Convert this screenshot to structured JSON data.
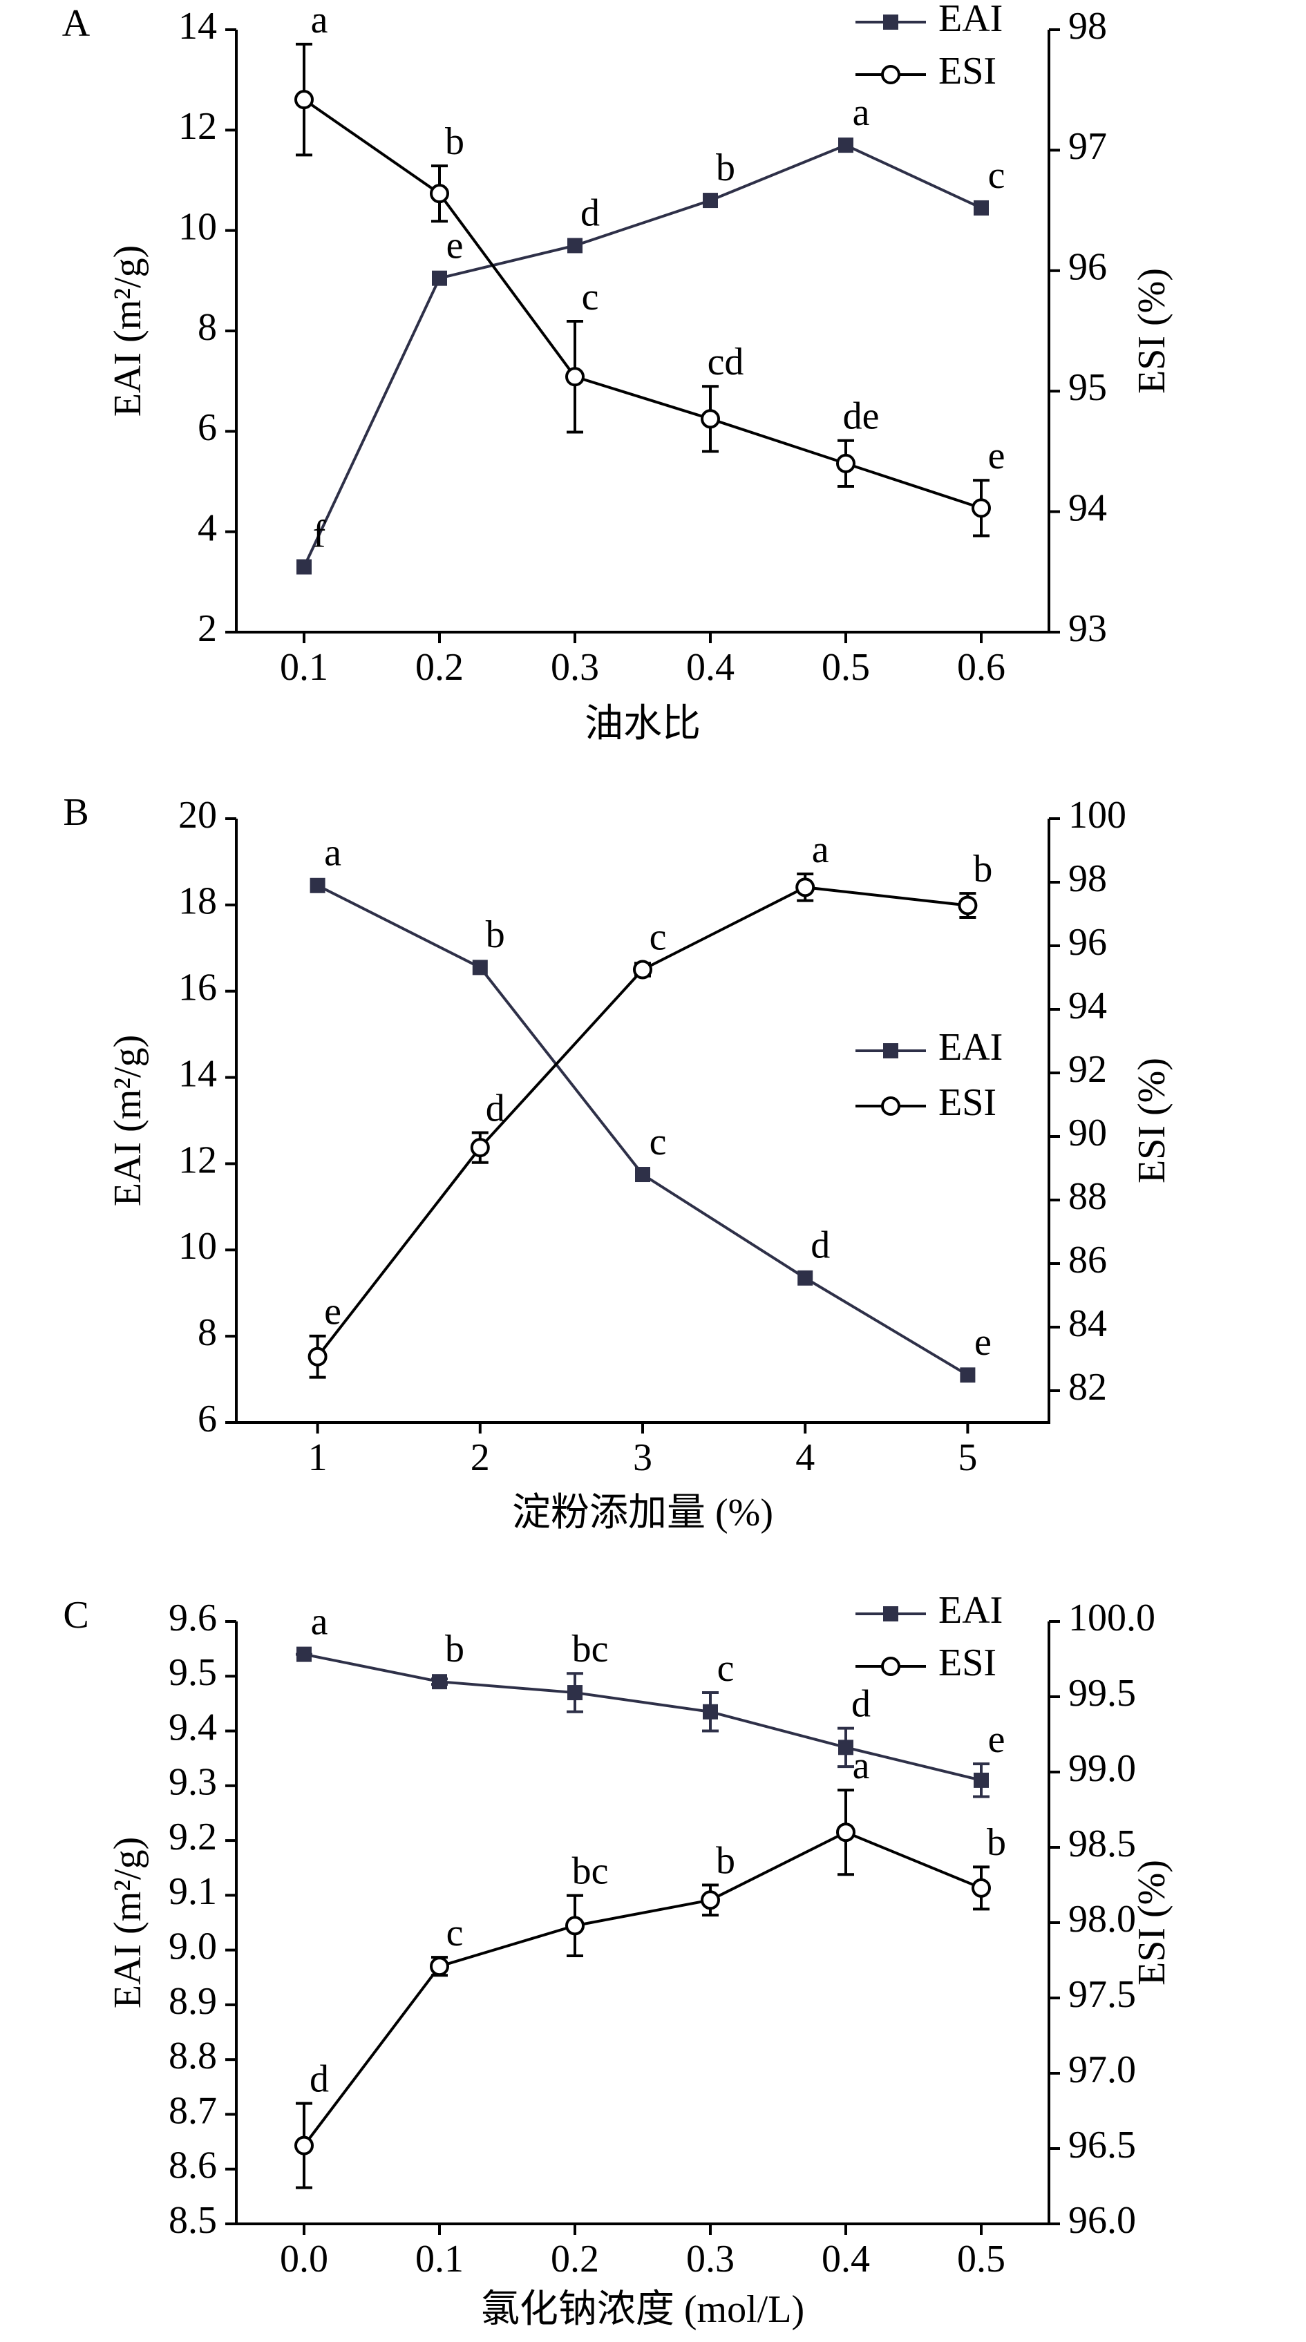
{
  "chart_data": [
    {
      "type": "line",
      "panel": "A",
      "xlabel": "油水比",
      "ylabel": "EAI (m²/g)",
      "y2label": "ESI (%)",
      "x": [
        0.1,
        0.2,
        0.3,
        0.4,
        0.5,
        0.6
      ],
      "xlim": [
        0.05,
        0.65
      ],
      "xticks": [
        0.1,
        0.2,
        0.3,
        0.4,
        0.5,
        0.6
      ],
      "ylim": [
        2,
        14
      ],
      "yticks": [
        2,
        4,
        6,
        8,
        10,
        12,
        14
      ],
      "y2lim": [
        93,
        98
      ],
      "y2ticks": [
        93,
        94,
        95,
        96,
        97,
        98
      ],
      "legend": "upper right",
      "series": [
        {
          "name": "EAI",
          "color": "#2e3048",
          "marker": "square",
          "values": [
            3.3,
            9.05,
            9.7,
            10.6,
            11.7,
            10.45
          ],
          "letters": [
            "f",
            "e",
            "d",
            "b",
            "a",
            "c"
          ]
        },
        {
          "name": "ESI",
          "color": "#000000",
          "marker": "circle",
          "axis": "y2",
          "values": [
            97.42,
            96.64,
            95.12,
            94.77,
            94.4,
            94.03
          ],
          "errors": [
            0.46,
            0.23,
            0.46,
            0.27,
            0.19,
            0.23
          ],
          "letters": [
            "a",
            "b",
            "c",
            "cd",
            "de",
            "e"
          ]
        }
      ]
    },
    {
      "type": "line",
      "panel": "B",
      "xlabel": "淀粉添加量 (%)",
      "ylabel": "EAI (m²/g)",
      "y2label": "ESI (%)",
      "x": [
        1,
        2,
        3,
        4,
        5
      ],
      "xlim": [
        0.5,
        5.5
      ],
      "xticks": [
        1,
        2,
        3,
        4,
        5
      ],
      "ylim": [
        6,
        20
      ],
      "yticks": [
        6,
        8,
        10,
        12,
        14,
        16,
        18,
        20
      ],
      "y2lim": [
        81,
        100
      ],
      "y2ticks": [
        82,
        84,
        86,
        88,
        90,
        92,
        94,
        96,
        98,
        100
      ],
      "legend": "center right",
      "series": [
        {
          "name": "EAI",
          "color": "#2e3048",
          "marker": "square",
          "values": [
            18.45,
            16.55,
            11.75,
            9.35,
            7.1
          ],
          "letters": [
            "a",
            "b",
            "c",
            "d",
            "e"
          ]
        },
        {
          "name": "ESI",
          "color": "#000000",
          "marker": "circle",
          "axis": "y2",
          "values": [
            83.07,
            89.65,
            95.25,
            97.84,
            97.27
          ],
          "errors": [
            0.65,
            0.47,
            0.2,
            0.42,
            0.38
          ],
          "letters": [
            "e",
            "d",
            "c",
            "a",
            "b"
          ]
        }
      ]
    },
    {
      "type": "line",
      "panel": "C",
      "xlabel": "氯化钠浓度 (mol/L)",
      "ylabel": "EAI (m²/g)",
      "y2label": "ESI (%)",
      "x": [
        0,
        0.1,
        0.2,
        0.3,
        0.4,
        0.5
      ],
      "xlim": [
        -0.05,
        0.55
      ],
      "xticks": [
        {
          "value": 0,
          "label": "0.0"
        },
        0.1,
        0.2,
        0.3,
        0.4,
        0.5
      ],
      "ylim": [
        8.5,
        9.6
      ],
      "yticks": [
        8.5,
        8.6,
        8.7,
        8.8,
        8.9,
        {
          "value": 9,
          "label": "9.0"
        },
        9.1,
        9.2,
        9.3,
        9.4,
        9.5,
        9.6
      ],
      "y2lim": [
        96,
        100
      ],
      "y2ticks": [
        {
          "value": 96,
          "label": "96.0"
        },
        96.5,
        {
          "value": 97,
          "label": "97.0"
        },
        97.5,
        {
          "value": 98,
          "label": "98.0"
        },
        98.5,
        {
          "value": 99,
          "label": "99.0"
        },
        99.5,
        {
          "value": 100,
          "label": "100.0"
        }
      ],
      "legend": "upper right",
      "series": [
        {
          "name": "EAI",
          "color": "#2e3048",
          "marker": "square",
          "values": [
            9.54,
            9.49,
            9.47,
            9.435,
            9.37,
            9.31
          ],
          "errors": [
            0,
            0.005,
            0.035,
            0.035,
            0.035,
            0.03
          ],
          "letters": [
            "a",
            "b",
            "bc",
            "c",
            "d",
            "e"
          ]
        },
        {
          "name": "ESI",
          "color": "#000000",
          "marker": "circle",
          "axis": "y2",
          "values": [
            96.52,
            97.71,
            97.98,
            98.15,
            98.6,
            98.23
          ],
          "errors": [
            0.28,
            0.06,
            0.2,
            0.1,
            0.28,
            0.14
          ],
          "letters": [
            "d",
            "c",
            "bc",
            "b",
            "a",
            "b"
          ]
        }
      ]
    }
  ]
}
